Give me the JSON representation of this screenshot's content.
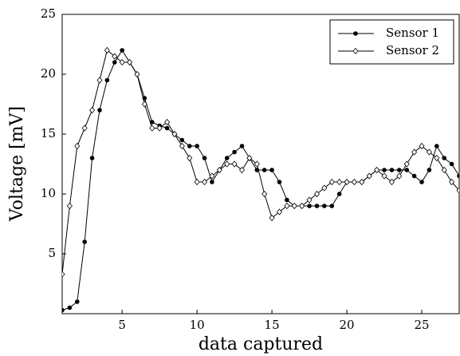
{
  "chart_data": {
    "type": "line",
    "xlabel": "data captured",
    "ylabel": "Voltage [mV]",
    "x": [
      1,
      1.5,
      2,
      2.5,
      3,
      3.5,
      4,
      4.5,
      5,
      5.5,
      6,
      6.5,
      7,
      7.5,
      8,
      8.5,
      9,
      9.5,
      10,
      10.5,
      11,
      11.5,
      12,
      12.5,
      13,
      13.5,
      14,
      14.5,
      15,
      15.5,
      16,
      16.5,
      17,
      17.5,
      18,
      18.5,
      19,
      19.5,
      20,
      20.5,
      21,
      21.5,
      22,
      22.5,
      23,
      23.5,
      24,
      24.5,
      25,
      25.5,
      26,
      26.5,
      27,
      27.5
    ],
    "series": [
      {
        "name": "Sensor 1",
        "color": "#000000",
        "marker": "filled-circle",
        "values": [
          0.3,
          0.5,
          1.0,
          6,
          13,
          17,
          19.5,
          21,
          22,
          21,
          20,
          18,
          16,
          15.7,
          15.5,
          15,
          14.5,
          14,
          14,
          13,
          11,
          12,
          13,
          13.5,
          14,
          13,
          12,
          12,
          12,
          11,
          9.5,
          9,
          9,
          9,
          9,
          9,
          9,
          10,
          11,
          11,
          11,
          11.5,
          12,
          12,
          12,
          12,
          12,
          11.5,
          11,
          12,
          14,
          13,
          12.5,
          11.5
        ]
      },
      {
        "name": "Sensor 2",
        "color": "#000000",
        "marker": "open-diamond",
        "values": [
          3.3,
          9,
          14,
          15.5,
          17,
          19.5,
          22,
          21.5,
          21,
          21,
          20,
          17.5,
          15.5,
          15.5,
          16,
          15,
          14,
          13,
          11,
          11,
          11.5,
          12,
          12.5,
          12.5,
          12,
          13,
          12.5,
          10,
          8,
          8.5,
          9,
          9,
          9,
          9.5,
          10,
          10.5,
          11,
          11,
          11,
          11,
          11,
          11.5,
          12,
          11.5,
          11,
          11.5,
          12.5,
          13.5,
          14,
          13.5,
          13,
          12,
          11,
          10.3
        ]
      }
    ],
    "xlim": [
      1,
      27.5
    ],
    "xticks": [
      5,
      10,
      15,
      20,
      25
    ],
    "ylim": [
      0,
      25
    ],
    "yticks": [
      5,
      10,
      15,
      20,
      25
    ],
    "legend": "upper right",
    "grid": false
  }
}
